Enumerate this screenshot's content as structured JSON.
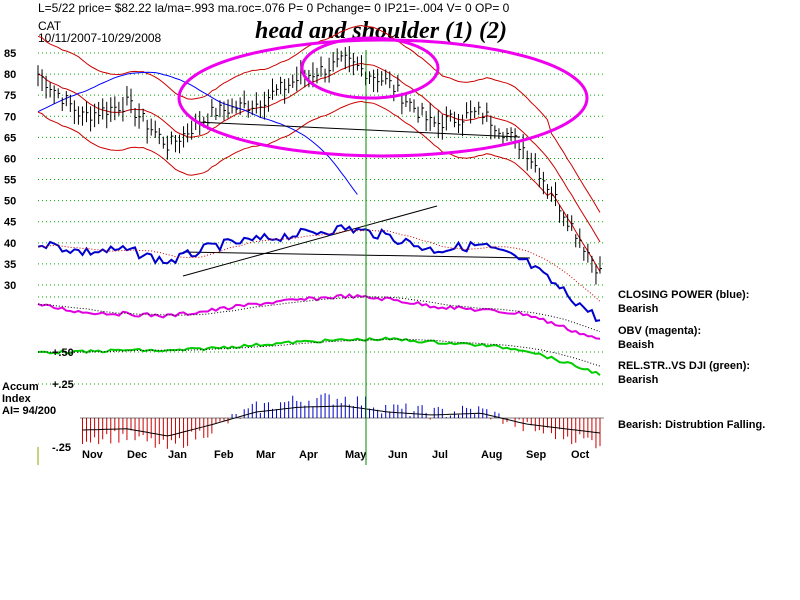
{
  "header": {
    "stats_line": "L=5/22  price= $82.22  la/ma=.993  ma.roc=.076 P=  0 Pchange=  0 IP21=-.004 V= 0 OP= 0",
    "symbol": "CAT",
    "date_range": "10/11/2007-10/29/2008"
  },
  "title": "head and shoulder (1) (2)",
  "accum_label": {
    "line1": "Accum",
    "line2": "Index",
    "line3": "AI= 94/200"
  },
  "indicators": {
    "closing_power": {
      "title": "CLOSING POWER (blue):",
      "status": "Bearish"
    },
    "obv": {
      "title": "OBV (magenta):",
      "status": "Beaish"
    },
    "rel_str": {
      "title": "REL.STR..VS DJI (green):",
      "status": "Bearish"
    },
    "accum": {
      "title": "Bearish: Distrubtion Falling."
    }
  },
  "colors": {
    "price_bars": "#000000",
    "closing_power": "#0000cc",
    "obv": "#e000e0",
    "rel_str": "#00cc00",
    "bands": "#cc0000",
    "ma_blue": "#0000ff",
    "accum_pos": "#0000cc",
    "accum_neg": "#cc0000",
    "annotation_ellipse": "#ee00ee",
    "vertical_marker": "#008800",
    "grid": "#00aa00"
  },
  "chart_data": {
    "type": "line",
    "price_axis": {
      "ticks": [
        85,
        80,
        75,
        70,
        65,
        60,
        55,
        50,
        45,
        40,
        35,
        30
      ]
    },
    "accum_axis": {
      "ticks": [
        "+.50",
        "+.25",
        "-.25"
      ]
    },
    "x_months": [
      "Nov",
      "Dec",
      "Jan",
      "Feb",
      "Mar",
      "Apr",
      "May",
      "Jun",
      "Jul",
      "Aug",
      "Sep",
      "Oct"
    ],
    "price_close_approx": [
      {
        "month": "Oct",
        "value": 80
      },
      {
        "month": "Nov",
        "value": 70
      },
      {
        "month": "Dec",
        "value": 73
      },
      {
        "month": "Jan",
        "value": 63
      },
      {
        "month": "Feb",
        "value": 71
      },
      {
        "month": "Mar",
        "value": 73
      },
      {
        "month": "Apr",
        "value": 79
      },
      {
        "month": "May",
        "value": 83
      },
      {
        "month": "Jun",
        "value": 78
      },
      {
        "month": "Jul",
        "value": 68
      },
      {
        "month": "Aug",
        "value": 71
      },
      {
        "month": "Sep",
        "value": 62
      },
      {
        "month": "Oct",
        "value": 33
      }
    ],
    "annotations": [
      "head and shoulder (1) (2)"
    ],
    "vertical_marker_month": "May"
  }
}
